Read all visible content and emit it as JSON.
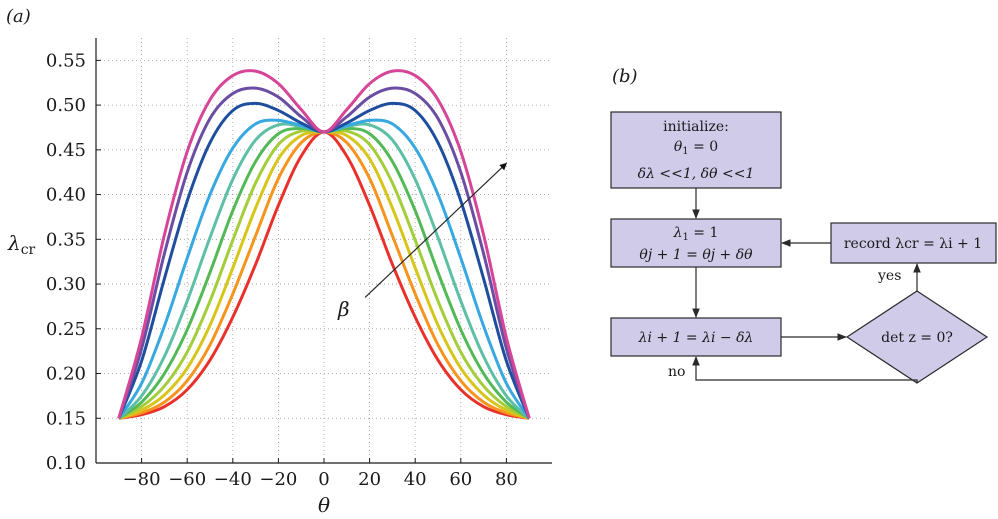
{
  "panel_labels": {
    "a": "(a)",
    "b": "(b)"
  },
  "chart_data": {
    "type": "line",
    "xlabel": "θ",
    "ylabel": "λcr",
    "xlim": [
      -100,
      100
    ],
    "ylim": [
      0.1,
      0.575
    ],
    "xticks": [
      -80,
      -60,
      -40,
      -20,
      0,
      20,
      40,
      60,
      80
    ],
    "xtick_labels": [
      "−80",
      "−60",
      "−40",
      "−20",
      "0",
      "20",
      "40",
      "60",
      "80"
    ],
    "yticks": [
      0.1,
      0.15,
      0.2,
      0.25,
      0.3,
      0.35,
      0.4,
      0.45,
      0.5,
      0.55
    ],
    "ytick_labels": [
      "0.10",
      "0.15",
      "0.20",
      "0.25",
      "0.30",
      "0.35",
      "0.40",
      "0.45",
      "0.50",
      "0.55"
    ],
    "grid": true,
    "annotation": {
      "text": "β",
      "arrow_from": [
        18,
        0.285
      ],
      "arrow_to": [
        80,
        0.435
      ]
    },
    "series": [
      {
        "color": "#e8312a",
        "x": [
          -90,
          -80,
          -70,
          -60,
          -50,
          -40,
          -30,
          -20,
          -10,
          0,
          10,
          20,
          30,
          40,
          50,
          60,
          70,
          80,
          90
        ],
        "y": [
          0.15,
          0.154,
          0.163,
          0.182,
          0.215,
          0.263,
          0.322,
          0.388,
          0.443,
          0.47,
          0.443,
          0.388,
          0.322,
          0.263,
          0.215,
          0.182,
          0.163,
          0.154,
          0.15
        ]
      },
      {
        "color": "#f7941d",
        "x": [
          -90,
          -80,
          -70,
          -60,
          -50,
          -40,
          -30,
          -20,
          -10,
          0,
          10,
          20,
          30,
          40,
          50,
          60,
          70,
          80,
          90
        ],
        "y": [
          0.15,
          0.156,
          0.168,
          0.192,
          0.232,
          0.289,
          0.354,
          0.418,
          0.458,
          0.47,
          0.458,
          0.418,
          0.354,
          0.289,
          0.232,
          0.192,
          0.168,
          0.156,
          0.15
        ]
      },
      {
        "color": "#d8c51a",
        "x": [
          -90,
          -80,
          -70,
          -60,
          -50,
          -40,
          -30,
          -20,
          -10,
          0,
          10,
          20,
          30,
          40,
          50,
          60,
          70,
          80,
          90
        ],
        "y": [
          0.15,
          0.159,
          0.176,
          0.206,
          0.254,
          0.318,
          0.385,
          0.44,
          0.466,
          0.47,
          0.466,
          0.44,
          0.385,
          0.318,
          0.254,
          0.206,
          0.176,
          0.159,
          0.15
        ]
      },
      {
        "color": "#a3cd3a",
        "x": [
          -90,
          -80,
          -70,
          -60,
          -50,
          -40,
          -30,
          -20,
          -10,
          0,
          10,
          20,
          30,
          40,
          50,
          60,
          70,
          80,
          90
        ],
        "y": [
          0.15,
          0.163,
          0.186,
          0.224,
          0.281,
          0.349,
          0.413,
          0.456,
          0.471,
          0.47,
          0.471,
          0.456,
          0.413,
          0.349,
          0.281,
          0.224,
          0.186,
          0.163,
          0.15
        ]
      },
      {
        "color": "#52b956",
        "x": [
          -90,
          -80,
          -70,
          -60,
          -50,
          -40,
          -30,
          -20,
          -10,
          0,
          10,
          20,
          30,
          40,
          50,
          60,
          70,
          80,
          90
        ],
        "y": [
          0.15,
          0.168,
          0.2,
          0.249,
          0.313,
          0.382,
          0.437,
          0.468,
          0.474,
          0.47,
          0.474,
          0.468,
          0.437,
          0.382,
          0.313,
          0.249,
          0.2,
          0.168,
          0.15
        ]
      },
      {
        "color": "#5dbfa5",
        "x": [
          -90,
          -80,
          -70,
          -60,
          -50,
          -40,
          -30,
          -20,
          -10,
          0,
          10,
          20,
          30,
          40,
          50,
          60,
          70,
          80,
          90
        ],
        "y": [
          0.15,
          0.175,
          0.219,
          0.281,
          0.352,
          0.417,
          0.461,
          0.478,
          0.476,
          0.47,
          0.476,
          0.478,
          0.461,
          0.417,
          0.352,
          0.281,
          0.219,
          0.175,
          0.15
        ]
      },
      {
        "color": "#37a8e0",
        "x": [
          -90,
          -80,
          -70,
          -60,
          -50,
          -40,
          -30,
          -20,
          -10,
          0,
          10,
          20,
          30,
          40,
          50,
          60,
          70,
          80,
          90
        ],
        "y": [
          0.15,
          0.189,
          0.253,
          0.329,
          0.4,
          0.452,
          0.479,
          0.483,
          0.477,
          0.47,
          0.477,
          0.483,
          0.479,
          0.452,
          0.4,
          0.329,
          0.253,
          0.189,
          0.15
        ]
      },
      {
        "color": "#1f4e9e",
        "x": [
          -90,
          -80,
          -70,
          -60,
          -50,
          -40,
          -30,
          -20,
          -10,
          0,
          10,
          20,
          30,
          40,
          50,
          60,
          70,
          80,
          90
        ],
        "y": [
          0.15,
          0.214,
          0.306,
          0.393,
          0.458,
          0.494,
          0.502,
          0.494,
          0.48,
          0.47,
          0.48,
          0.494,
          0.502,
          0.494,
          0.458,
          0.393,
          0.306,
          0.214,
          0.15
        ]
      },
      {
        "color": "#6b4ea3",
        "x": [
          -90,
          -80,
          -70,
          -60,
          -50,
          -40,
          -30,
          -20,
          -10,
          0,
          10,
          20,
          30,
          40,
          50,
          60,
          70,
          80,
          90
        ],
        "y": [
          0.15,
          0.228,
          0.334,
          0.425,
          0.485,
          0.513,
          0.519,
          0.509,
          0.487,
          0.47,
          0.487,
          0.509,
          0.519,
          0.513,
          0.485,
          0.425,
          0.334,
          0.228,
          0.15
        ]
      },
      {
        "color": "#d64597",
        "x": [
          -90,
          -80,
          -70,
          -60,
          -50,
          -40,
          -30,
          -20,
          -10,
          0,
          10,
          20,
          30,
          40,
          50,
          60,
          70,
          80,
          90
        ],
        "y": [
          0.15,
          0.24,
          0.355,
          0.448,
          0.506,
          0.533,
          0.538,
          0.524,
          0.495,
          0.47,
          0.495,
          0.524,
          0.538,
          0.533,
          0.506,
          0.448,
          0.355,
          0.24,
          0.15
        ]
      }
    ]
  },
  "flowchart": {
    "init": {
      "line1": "initialize:",
      "line2_var": "θ",
      "line2_sub": "1",
      "line2_rest": " = 0",
      "line3": "δλ <<1, δθ <<1"
    },
    "lambda_reset": {
      "line1_var": "λ",
      "line1_sub": "1",
      "line1_rest": " = 1",
      "line2": "θj + 1 = θj + δθ"
    },
    "lambda_update": {
      "text": "λi + 1 = λi − δλ"
    },
    "decision": {
      "text": "det z = 0?"
    },
    "record": {
      "text": "record λcr = λi + 1"
    },
    "yes_label": "yes",
    "no_label": "no"
  }
}
